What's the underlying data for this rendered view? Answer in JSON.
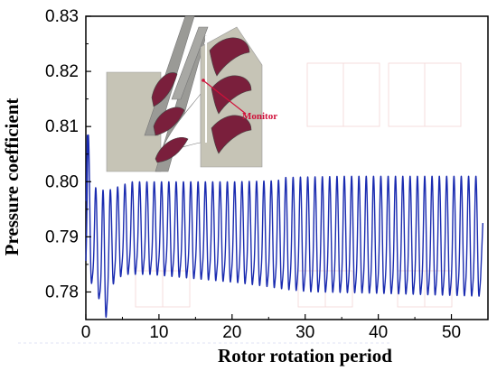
{
  "chart_data": {
    "type": "line",
    "title": "",
    "xlabel": "Rotor rotation period",
    "ylabel": "Pressure coefficient",
    "xlim": [
      0,
      55
    ],
    "ylim": [
      0.775,
      0.83
    ],
    "x_ticks": [
      0,
      10,
      20,
      30,
      40,
      50
    ],
    "y_ticks": [
      0.78,
      0.79,
      0.8,
      0.81,
      0.82,
      0.83
    ],
    "y_tick_labels": [
      "0.78",
      "0.79",
      "0.80",
      "0.81",
      "0.82",
      "0.83"
    ],
    "grid": false,
    "legend": "none",
    "series": [
      {
        "color": "#1a2bb0",
        "description": "oscillating periodic signal, roughly one oscillation per rotor period",
        "x_range": [
          0,
          54
        ],
        "peaks": [
          [
            0.35,
            0.8085
          ],
          [
            1.2,
            0.799
          ],
          [
            2.2,
            0.7985
          ],
          [
            3.2,
            0.7985
          ],
          [
            4.2,
            0.799
          ],
          [
            5.2,
            0.7995
          ],
          [
            6.2,
            0.8
          ],
          [
            8.2,
            0.8
          ],
          [
            10.2,
            0.8
          ],
          [
            15.2,
            0.8
          ],
          [
            20.2,
            0.8
          ],
          [
            26.2,
            0.8002
          ],
          [
            27.2,
            0.8008
          ],
          [
            35.2,
            0.801
          ],
          [
            45.2,
            0.801
          ],
          [
            53.2,
            0.801
          ]
        ],
        "troughs": [
          [
            0.7,
            0.7825
          ],
          [
            1.7,
            0.78
          ],
          [
            2.6,
            0.775
          ],
          [
            3.6,
            0.782
          ],
          [
            4.6,
            0.7835
          ],
          [
            5.6,
            0.784
          ],
          [
            8.6,
            0.784
          ],
          [
            12.6,
            0.7835
          ],
          [
            16.6,
            0.783
          ],
          [
            20.6,
            0.7825
          ],
          [
            24.6,
            0.7818
          ],
          [
            27.6,
            0.7812
          ],
          [
            30.6,
            0.7808
          ],
          [
            40.6,
            0.7805
          ],
          [
            53.6,
            0.78
          ]
        ],
        "end_point": [
          54.3,
          0.7925
        ]
      }
    ],
    "colors": {
      "line": "#1a2bb0",
      "inset_annotation": "#d0103a",
      "blade_fill": "#7a1f3c",
      "casing_fill": "#c6c4b6"
    },
    "annotations": [
      {
        "text": "Monitor",
        "description": "red label inside inset turbine cascade image, arrow points to monitor location"
      }
    ]
  }
}
